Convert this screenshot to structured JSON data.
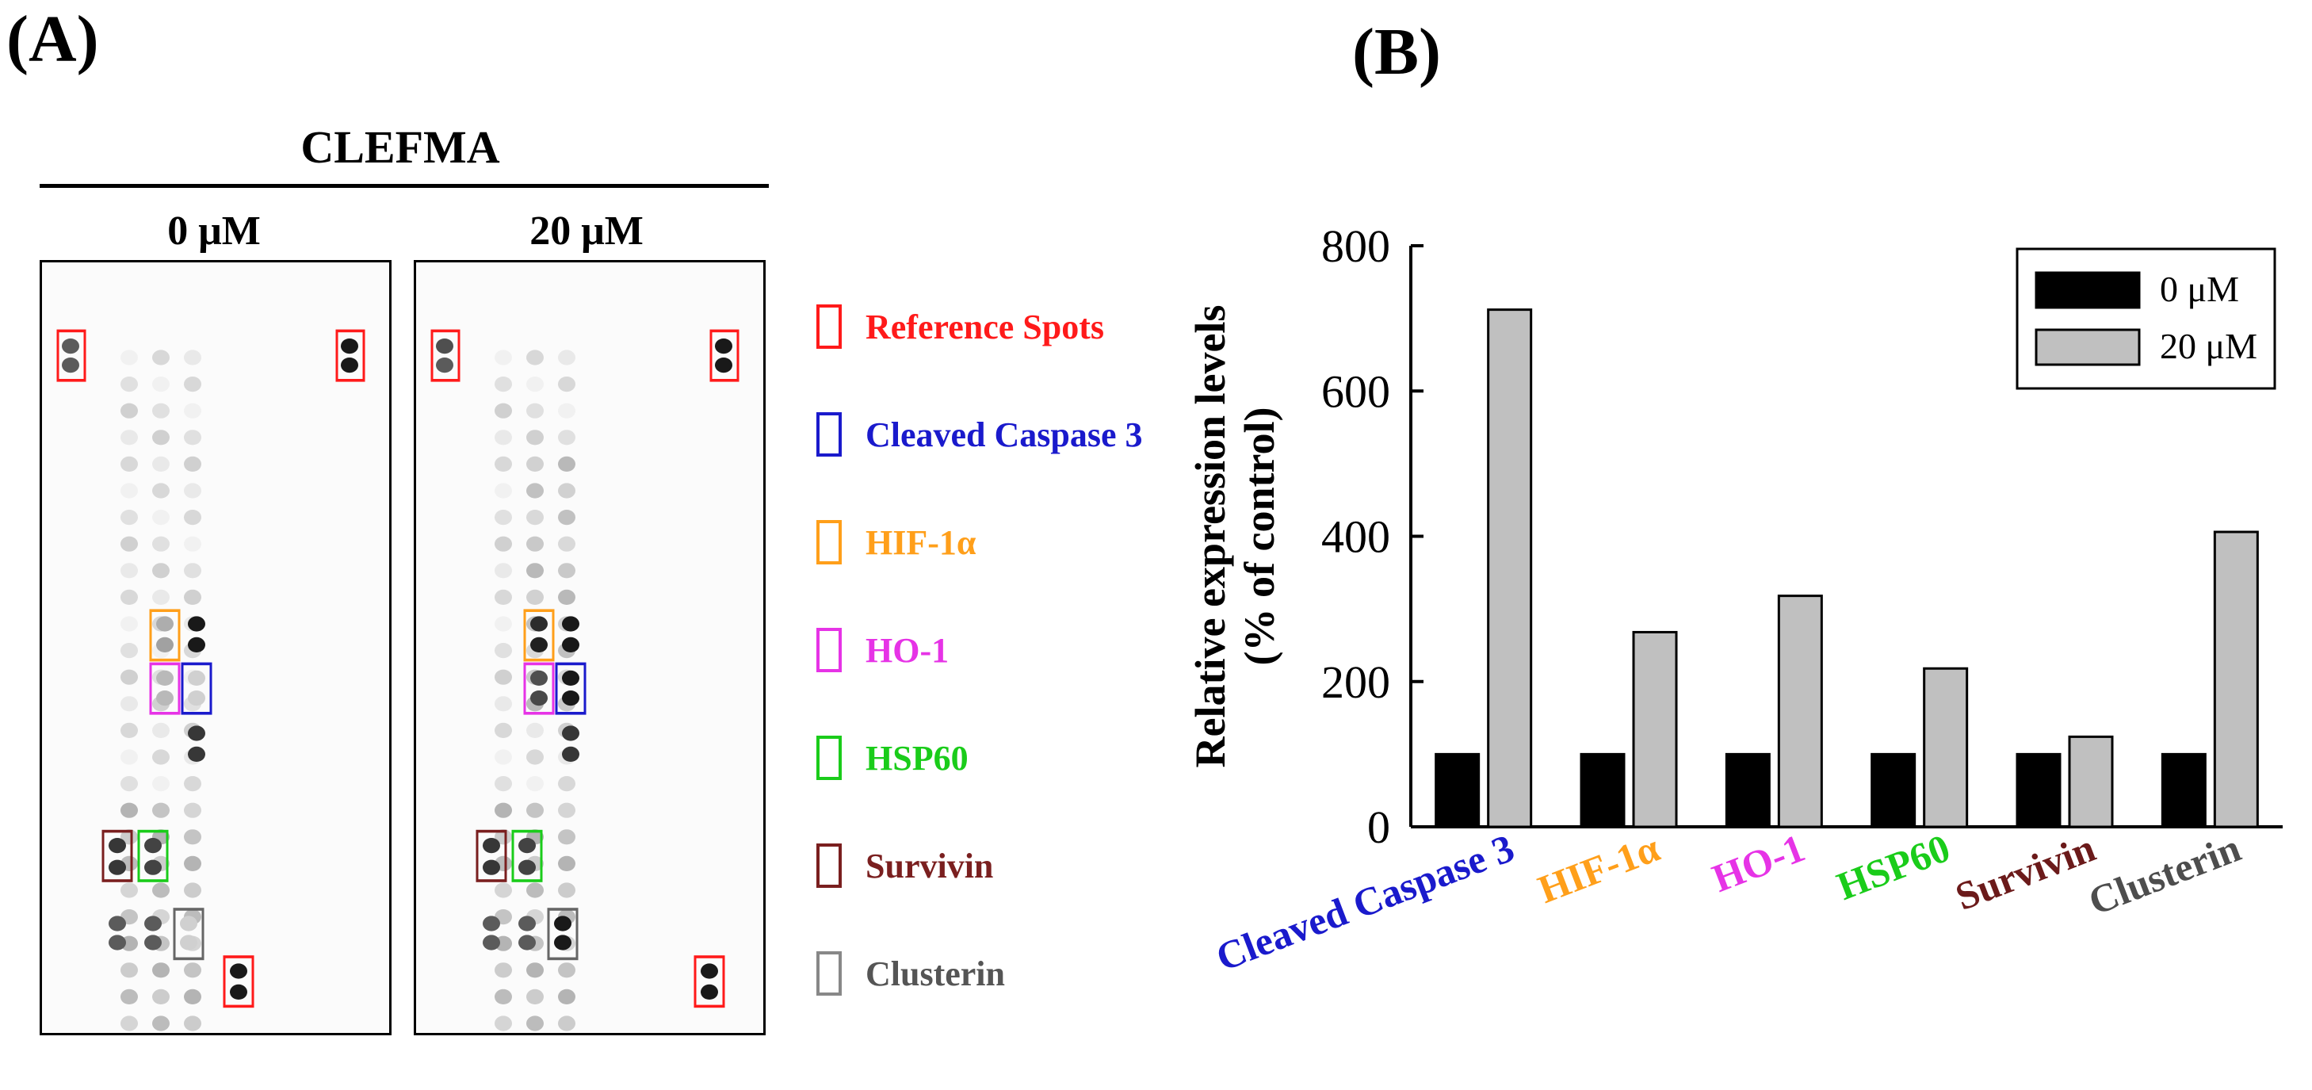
{
  "panel_a": {
    "label": "(A)",
    "condition_title": "CLEFMA",
    "doses": [
      "0 μM",
      "20 μM"
    ],
    "legend": [
      {
        "label": "Reference Spots",
        "color": "#ff1a1a"
      },
      {
        "label": "Cleaved Caspase 3",
        "color": "#1a1acc"
      },
      {
        "label": "HIF-1α",
        "color": "#ff9f1a"
      },
      {
        "label": "HO-1",
        "color": "#e633e6"
      },
      {
        "label": "HSP60",
        "color": "#1acc1a"
      },
      {
        "label": "Survivin",
        "color": "#7a1f1f"
      },
      {
        "label": "Clusterin",
        "color": "#555555"
      }
    ]
  },
  "panel_b": {
    "label": "(B)"
  },
  "chart_data": {
    "type": "bar",
    "title": "",
    "xlabel": "",
    "ylabel": "Relative expression levels (% of control)",
    "ylabel_lines": [
      "Relative expression levels",
      "(% of control)"
    ],
    "ylim": [
      0,
      800
    ],
    "yticks": [
      0,
      200,
      400,
      600,
      800
    ],
    "categories": [
      "Cleaved Caspase 3",
      "HIF-1α",
      "HO-1",
      "HSP60",
      "Survivin",
      "Clusterin"
    ],
    "category_colors": [
      "#1a1acc",
      "#ff9f1a",
      "#e633e6",
      "#1acc1a",
      "#6b1a1a",
      "#4d4d4d"
    ],
    "series": [
      {
        "name": "0 μM",
        "values": [
          100,
          100,
          100,
          100,
          100,
          100
        ],
        "color": "#000000"
      },
      {
        "name": "20 μM",
        "values": [
          712,
          268,
          318,
          218,
          124,
          406
        ],
        "color": "#c0c0c0"
      }
    ],
    "legend_position": "top-right",
    "grid": false
  }
}
